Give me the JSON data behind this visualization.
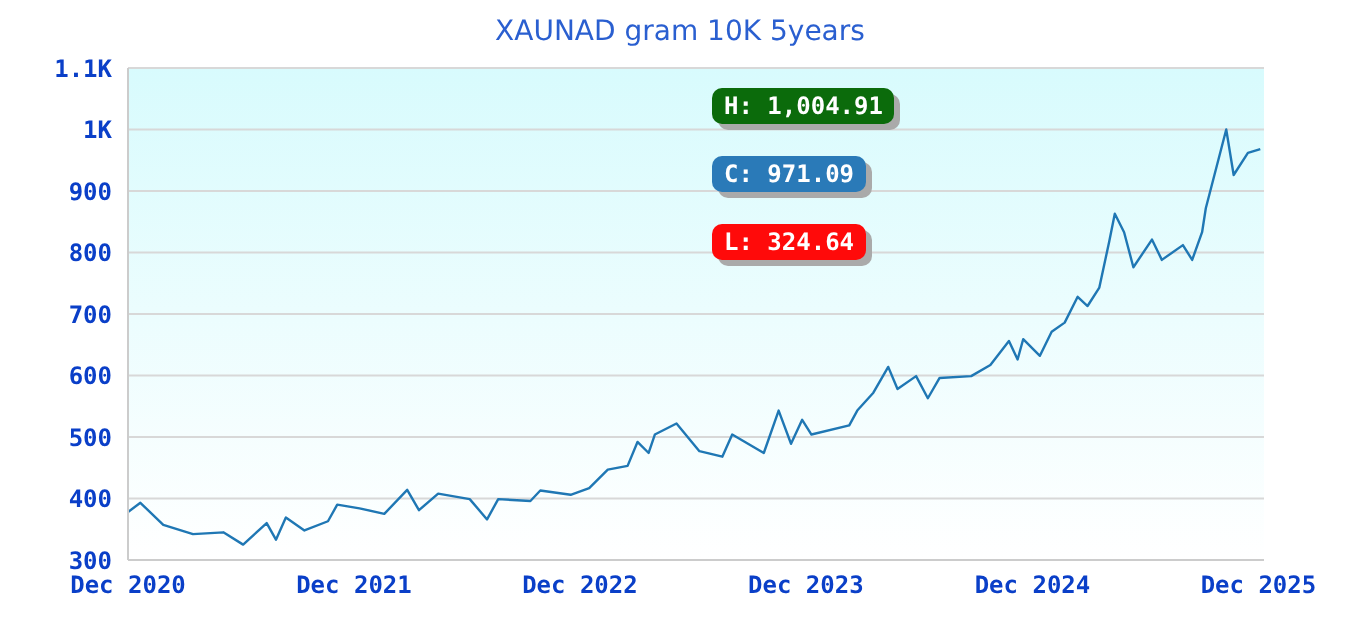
{
  "chart_data": {
    "type": "line",
    "title": "XAUNAD gram 10K 5years",
    "annotations": [
      "H: 1,004.91",
      "C: 971.09",
      "L: 324.64"
    ],
    "x": [
      "2020-12-01",
      "2020-12-21",
      "2021-01-27",
      "2021-03-16",
      "2021-05-04",
      "2021-06-05",
      "2021-07-13",
      "2021-07-28",
      "2021-08-13",
      "2021-09-12",
      "2021-10-20",
      "2021-11-04",
      "2021-12-10",
      "2022-01-19",
      "2022-02-25",
      "2022-03-16",
      "2022-04-16",
      "2022-06-06",
      "2022-07-04",
      "2022-07-22",
      "2022-09-12",
      "2022-09-28",
      "2022-11-16",
      "2022-12-16",
      "2023-01-15",
      "2023-02-16",
      "2023-03-04",
      "2023-03-22",
      "2023-04-01",
      "2023-05-06",
      "2023-06-12",
      "2023-07-19",
      "2023-08-04",
      "2023-09-24",
      "2023-10-18",
      "2023-11-07",
      "2023-11-25",
      "2023-12-10",
      "2024-02-09",
      "2024-02-22",
      "2024-03-19",
      "2024-04-12",
      "2024-04-27",
      "2024-05-27",
      "2024-06-15",
      "2024-07-04",
      "2024-08-24",
      "2024-09-24",
      "2024-10-24",
      "2024-11-07",
      "2024-11-16",
      "2024-12-13",
      "2025-01-01",
      "2025-01-22",
      "2025-02-12",
      "2025-02-28",
      "2025-03-19",
      "2025-04-04",
      "2025-04-13",
      "2025-04-28",
      "2025-05-13",
      "2025-06-12",
      "2025-06-28",
      "2025-08-01",
      "2025-08-16",
      "2025-09-01",
      "2025-09-07",
      "2025-10-10",
      "2025-10-22",
      "2025-11-14",
      "2025-12-04"
    ],
    "series": [
      {
        "color": "#1f77b4",
        "values": [
          378,
          393,
          357,
          342,
          345,
          325,
          360,
          333,
          369,
          348,
          363,
          390,
          384,
          375,
          414,
          381,
          408,
          399,
          366,
          399,
          396,
          413,
          406,
          417,
          447,
          453,
          492,
          474,
          504,
          522,
          477,
          468,
          504,
          474,
          543,
          489,
          528,
          504,
          519,
          543,
          572,
          614,
          578,
          599,
          563,
          596,
          599,
          617,
          656,
          626,
          659,
          632,
          671,
          686,
          728,
          713,
          743,
          818,
          863,
          833,
          776,
          821,
          788,
          812,
          788,
          833,
          872,
          1000,
          926,
          962,
          968
        ]
      }
    ],
    "xlim": [
      "2020-12-01",
      "2025-12-10"
    ],
    "xticks": [
      {
        "value": "2020-12-01",
        "label": "Dec 2020"
      },
      {
        "value": "2021-12-01",
        "label": "Dec 2021"
      },
      {
        "value": "2022-12-01",
        "label": "Dec 2022"
      },
      {
        "value": "2023-12-01",
        "label": "Dec 2023"
      },
      {
        "value": "2024-12-01",
        "label": "Dec 2024"
      },
      {
        "value": "2025-12-01",
        "label": "Dec 2025"
      }
    ],
    "ylim": [
      300,
      1100
    ],
    "yticks": [
      300,
      400,
      500,
      600,
      700,
      800,
      900,
      {
        "value": 1000,
        "label": "1K"
      },
      {
        "value": 1100,
        "label": "1.1K"
      }
    ],
    "grid": "y",
    "legend": false,
    "marker": "none",
    "line_style": "solid"
  }
}
